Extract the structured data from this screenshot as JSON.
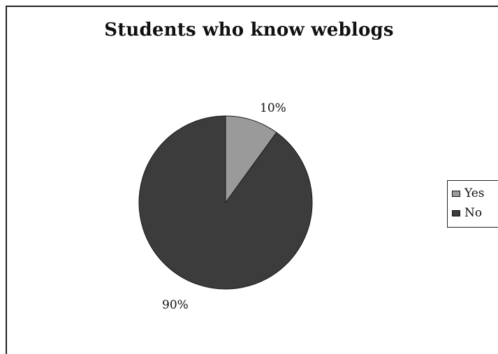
{
  "chart_data": {
    "type": "pie",
    "title": "Students who know weblogs",
    "categories": [
      "Yes",
      "No"
    ],
    "values": [
      10,
      90
    ],
    "labels": [
      "10%",
      "90%"
    ],
    "colors": [
      "#9a9a9a",
      "#3c3c3c"
    ],
    "legend": "right"
  }
}
